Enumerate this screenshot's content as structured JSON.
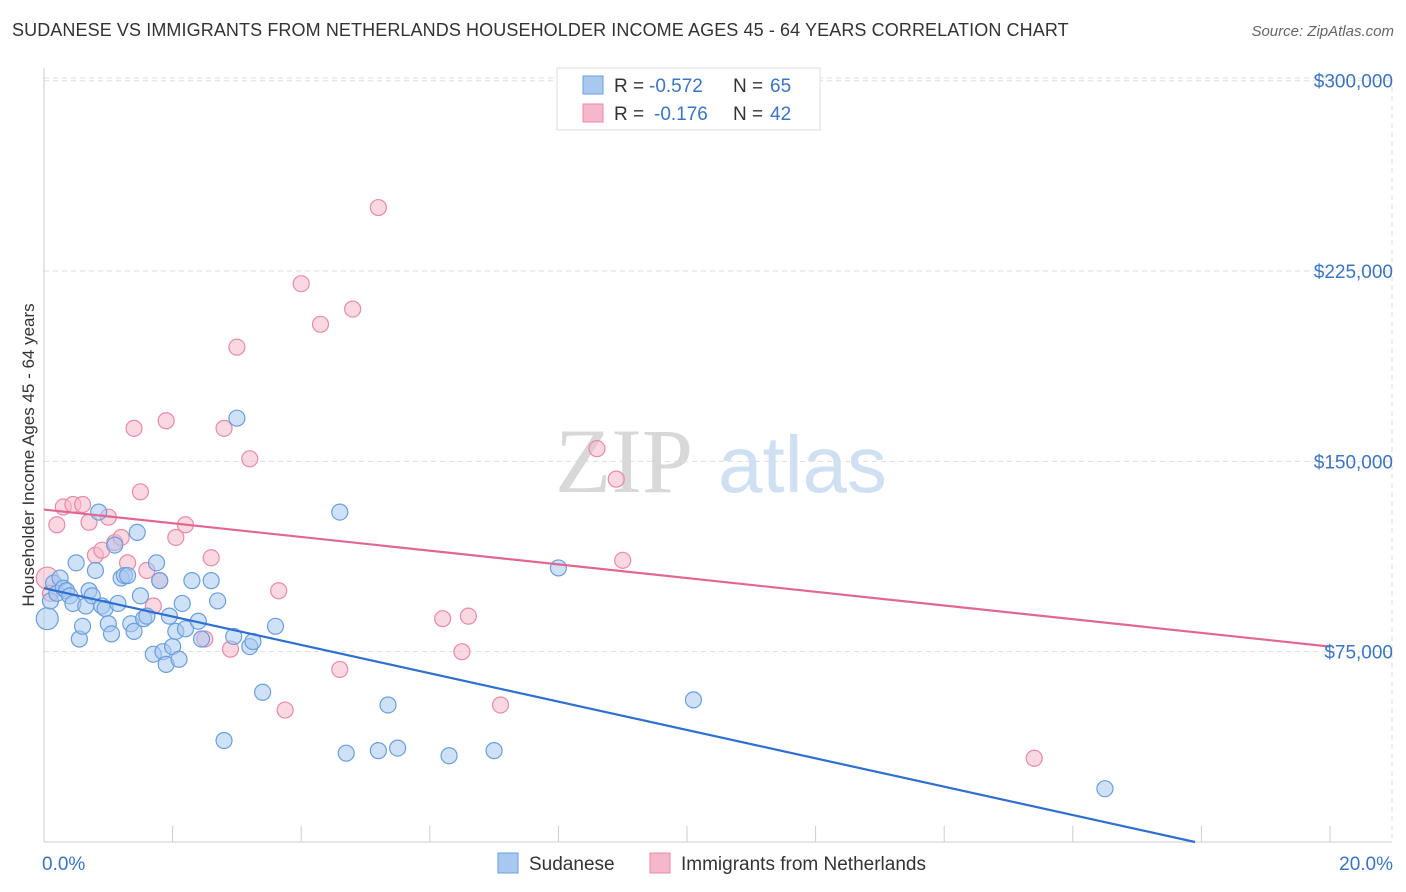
{
  "header": {
    "title": "SUDANESE VS IMMIGRANTS FROM NETHERLANDS HOUSEHOLDER INCOME AGES 45 - 64 YEARS CORRELATION CHART",
    "source": "Source: ZipAtlas.com"
  },
  "watermark": {
    "zip": "ZIP",
    "atlas": "atlas"
  },
  "legend_top": {
    "rows": [
      {
        "r_label": "R =",
        "r_value": "-0.572",
        "n_label": "N =",
        "n_value": "65"
      },
      {
        "r_label": "R =",
        "r_value": "-0.176",
        "n_label": "N =",
        "n_value": "42"
      }
    ]
  },
  "legend_bottom": {
    "items": [
      "Sudanese",
      "Immigrants from Netherlands"
    ]
  },
  "colors": {
    "blue_fill": "#a8c8f0",
    "blue_stroke": "#6a9fdc",
    "blue_line": "#2f6fcf",
    "pink_fill": "#f5b8cb",
    "pink_stroke": "#e88aa8",
    "pink_line": "#e06890",
    "tick_text": "#3a74c4",
    "grid": "#dddddd"
  },
  "chart_data": {
    "type": "scatter",
    "title": "SUDANESE VS IMMIGRANTS FROM NETHERLANDS HOUSEHOLDER INCOME AGES 45 - 64 YEARS CORRELATION CHART",
    "xlabel": "",
    "ylabel": "Householder Income Ages 45 - 64 years",
    "xlim": [
      0,
      20
    ],
    "ylim": [
      0,
      305000
    ],
    "x_tick_labels": [
      "0.0%",
      "20.0%"
    ],
    "y_ticks": [
      75000,
      150000,
      225000,
      300000
    ],
    "y_tick_labels": [
      "$75,000",
      "$150,000",
      "$225,000",
      "$300,000"
    ],
    "grid": true,
    "legend_position": "top-center",
    "series": [
      {
        "name": "Sudanese",
        "r": -0.572,
        "n": 65,
        "trend": [
          [
            0.0,
            100000
          ],
          [
            17.9,
            0
          ]
        ],
        "points": [
          [
            0.05,
            88000
          ],
          [
            0.1,
            95000
          ],
          [
            0.15,
            102000
          ],
          [
            0.2,
            98000
          ],
          [
            0.25,
            104000
          ],
          [
            0.3,
            100000
          ],
          [
            0.35,
            99000
          ],
          [
            0.4,
            97000
          ],
          [
            0.45,
            94000
          ],
          [
            0.5,
            110000
          ],
          [
            0.55,
            80000
          ],
          [
            0.6,
            85000
          ],
          [
            0.65,
            93000
          ],
          [
            0.7,
            99000
          ],
          [
            0.75,
            97000
          ],
          [
            0.8,
            107000
          ],
          [
            0.85,
            130000
          ],
          [
            0.9,
            93000
          ],
          [
            0.95,
            92000
          ],
          [
            1.0,
            86000
          ],
          [
            1.05,
            82000
          ],
          [
            1.1,
            117000
          ],
          [
            1.15,
            94000
          ],
          [
            1.2,
            104000
          ],
          [
            1.25,
            105000
          ],
          [
            1.3,
            105000
          ],
          [
            1.35,
            86000
          ],
          [
            1.4,
            83000
          ],
          [
            1.45,
            122000
          ],
          [
            1.5,
            97000
          ],
          [
            1.55,
            88000
          ],
          [
            1.6,
            89000
          ],
          [
            1.7,
            74000
          ],
          [
            1.75,
            110000
          ],
          [
            1.8,
            103000
          ],
          [
            1.85,
            75000
          ],
          [
            1.9,
            70000
          ],
          [
            1.95,
            89000
          ],
          [
            2.0,
            77000
          ],
          [
            2.05,
            83000
          ],
          [
            2.1,
            72000
          ],
          [
            2.15,
            94000
          ],
          [
            2.2,
            84000
          ],
          [
            2.3,
            103000
          ],
          [
            2.4,
            87000
          ],
          [
            2.45,
            80000
          ],
          [
            2.6,
            103000
          ],
          [
            2.7,
            95000
          ],
          [
            2.8,
            40000
          ],
          [
            2.95,
            81000
          ],
          [
            3.0,
            167000
          ],
          [
            3.2,
            77000
          ],
          [
            3.25,
            79000
          ],
          [
            3.4,
            59000
          ],
          [
            3.6,
            85000
          ],
          [
            4.6,
            130000
          ],
          [
            4.7,
            35000
          ],
          [
            5.2,
            36000
          ],
          [
            5.35,
            54000
          ],
          [
            5.5,
            37000
          ],
          [
            6.3,
            34000
          ],
          [
            7.0,
            36000
          ],
          [
            8.0,
            108000
          ],
          [
            10.1,
            56000
          ],
          [
            16.5,
            21000
          ]
        ]
      },
      {
        "name": "Immigrants from Netherlands",
        "r": -0.176,
        "n": 42,
        "trend": [
          [
            0.0,
            131000
          ],
          [
            20.0,
            77000
          ]
        ],
        "points": [
          [
            0.05,
            104000
          ],
          [
            0.1,
            98000
          ],
          [
            0.2,
            125000
          ],
          [
            0.3,
            132000
          ],
          [
            0.45,
            133000
          ],
          [
            0.6,
            133000
          ],
          [
            0.7,
            126000
          ],
          [
            0.8,
            113000
          ],
          [
            0.9,
            115000
          ],
          [
            1.0,
            128000
          ],
          [
            1.1,
            118000
          ],
          [
            1.2,
            120000
          ],
          [
            1.3,
            110000
          ],
          [
            1.4,
            163000
          ],
          [
            1.5,
            138000
          ],
          [
            1.6,
            107000
          ],
          [
            1.7,
            93000
          ],
          [
            1.8,
            103000
          ],
          [
            1.9,
            166000
          ],
          [
            2.05,
            120000
          ],
          [
            2.2,
            125000
          ],
          [
            2.5,
            80000
          ],
          [
            2.6,
            112000
          ],
          [
            2.8,
            163000
          ],
          [
            2.9,
            76000
          ],
          [
            3.0,
            195000
          ],
          [
            3.2,
            151000
          ],
          [
            3.65,
            99000
          ],
          [
            3.75,
            52000
          ],
          [
            4.0,
            220000
          ],
          [
            4.3,
            204000
          ],
          [
            4.6,
            68000
          ],
          [
            4.8,
            210000
          ],
          [
            5.2,
            250000
          ],
          [
            6.2,
            88000
          ],
          [
            6.5,
            75000
          ],
          [
            6.6,
            89000
          ],
          [
            7.1,
            54000
          ],
          [
            8.6,
            155000
          ],
          [
            8.9,
            143000
          ],
          [
            9.0,
            111000
          ],
          [
            15.4,
            33000
          ]
        ]
      }
    ]
  }
}
